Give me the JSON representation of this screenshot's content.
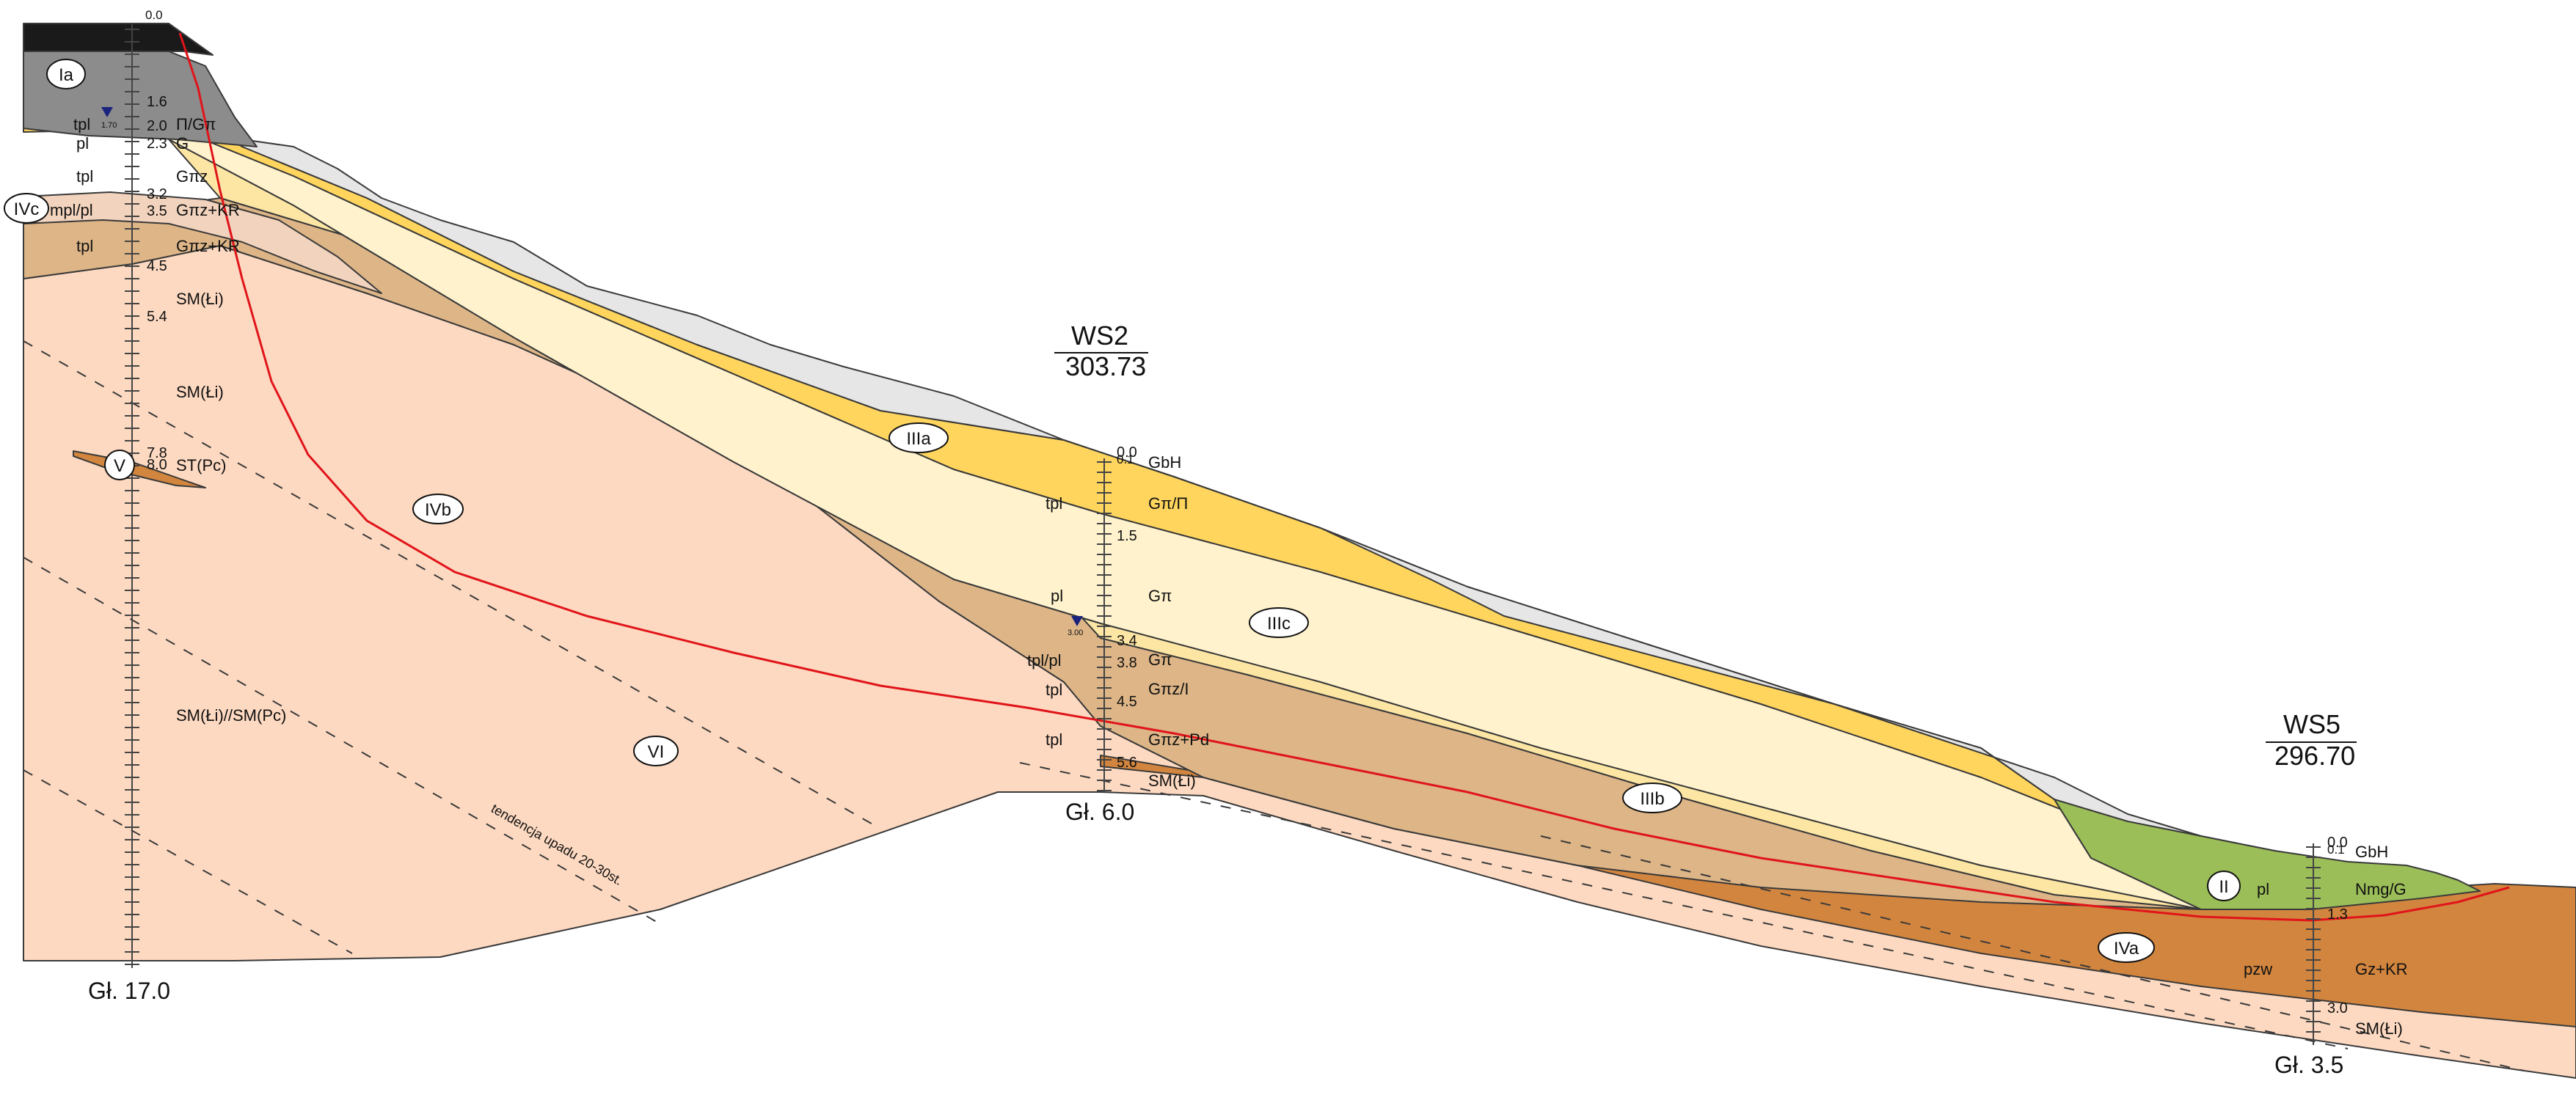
{
  "colors": {
    "background": "#ffffff",
    "fill_light_gray": "#e6e6e6",
    "fill_anthropogenic_top": "#1a1a1a",
    "fill_anthropogenic": "#8c8c8c",
    "fill_IIIa": "#ffd55e",
    "fill_IIIb": "#fde6a3",
    "fill_IIIc": "#fff2cc",
    "fill_IVb": "#ddb587",
    "fill_IVc": "#f2d3bd",
    "fill_IVa": "#d2853e",
    "fill_VI": "#fdd9c1",
    "fill_II": "#9bbe58",
    "slip_surface": "#e0141a",
    "water_table_marker": "#1a237e"
  },
  "units": {
    "Ia": "Ia",
    "II": "II",
    "IIIa": "IIIa",
    "IIIb": "IIIb",
    "IIIc": "IIIc",
    "IVa": "IVa",
    "IVb": "IVb",
    "IVc": "IVc",
    "V": "V",
    "VI": "VI"
  },
  "annotation": "tendencja upadu 20-30st.",
  "boreholes": {
    "left": {
      "top_depth": "0.0",
      "bottom_label": "Gł. 17.0",
      "water_level": "1.70",
      "depths": [
        "1.6",
        "2.0",
        "2.3",
        "3.2",
        "3.5",
        "4.5",
        "5.4",
        "7.8",
        "8.0"
      ],
      "stratigraphy": [
        "tpl",
        "pl",
        "tpl",
        "mpl/pl",
        "tpl"
      ],
      "lithology": [
        "Π/Gπ",
        "G",
        "Gπz",
        "Gπz+KR",
        "Gπz+KR",
        "SM(Łi)",
        "SM(Łi)",
        "ST(Pc)",
        "SM(Łi)//SM(Pc)"
      ]
    },
    "WS2": {
      "name": "WS2",
      "elevation": "303.73",
      "top_depth": "0.0",
      "top_depth_2": "0.1",
      "bottom_label": "Gł. 6.0",
      "water_level": "3.00",
      "depths": [
        "1.5",
        "3.4",
        "3.8",
        "4.5",
        "5.6"
      ],
      "stratigraphy": [
        "tpl",
        "pl",
        "tpl/pl",
        "tpl",
        "tpl"
      ],
      "lithology": [
        "GbH",
        "Gπ/Π",
        "Gπ",
        "Gπ",
        "Gπz/I",
        "Gπz+Pd",
        "SM(Łi)"
      ]
    },
    "WS5": {
      "name": "WS5",
      "elevation": "296.70",
      "top_depth": "0.0",
      "top_depth_2": "0.1",
      "bottom_label": "Gł. 3.5",
      "depths": [
        "1.3",
        "3.0"
      ],
      "stratigraphy": [
        "pl",
        "pzw"
      ],
      "lithology": [
        "GbH",
        "Nmg/G",
        "Gz+KR",
        "SM(Łi)"
      ]
    }
  }
}
